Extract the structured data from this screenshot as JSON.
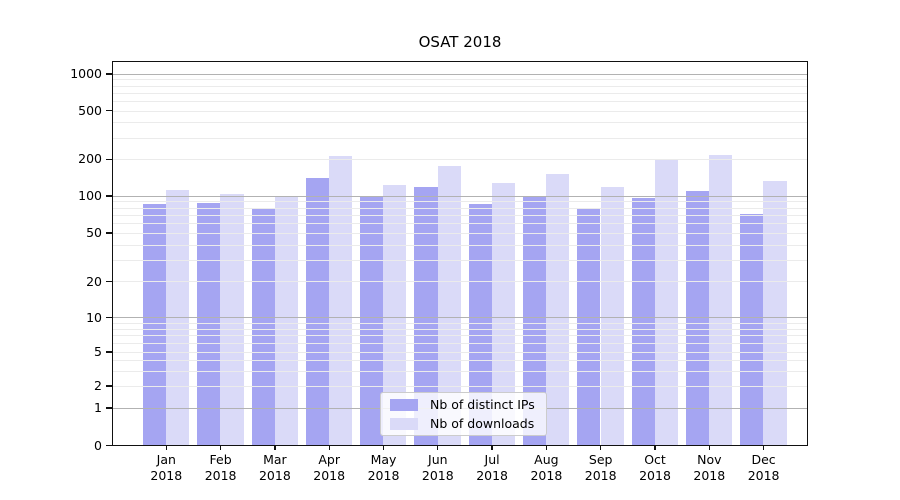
{
  "title": "OSAT 2018",
  "chart_data": {
    "type": "bar",
    "title": "OSAT 2018",
    "categories": [
      "Jan",
      "Feb",
      "Mar",
      "Apr",
      "May",
      "Jun",
      "Jul",
      "Aug",
      "Sep",
      "Oct",
      "Nov",
      "Dec"
    ],
    "x_year_label": "2018",
    "series": [
      {
        "name": "Nb of distinct IPs",
        "color": "#a5a5f2",
        "values": [
          86,
          88,
          78,
          140,
          98,
          119,
          87,
          98,
          79,
          97,
          110,
          72
        ]
      },
      {
        "name": "Nb of downloads",
        "color": "#dadaf8",
        "values": [
          112,
          105,
          100,
          214,
          123,
          178,
          129,
          151,
          119,
          197,
          216,
          133
        ]
      }
    ],
    "xlabel": "",
    "ylabel": "",
    "yscale": "symlog",
    "y_ticks": [
      0,
      1,
      2,
      5,
      10,
      20,
      50,
      100,
      200,
      500,
      1000
    ],
    "ylim": [
      0,
      1300
    ],
    "grid": "on",
    "legend_position": "lower center"
  },
  "legend": {
    "entries": [
      "Nb of distinct IPs",
      "Nb of downloads"
    ]
  }
}
